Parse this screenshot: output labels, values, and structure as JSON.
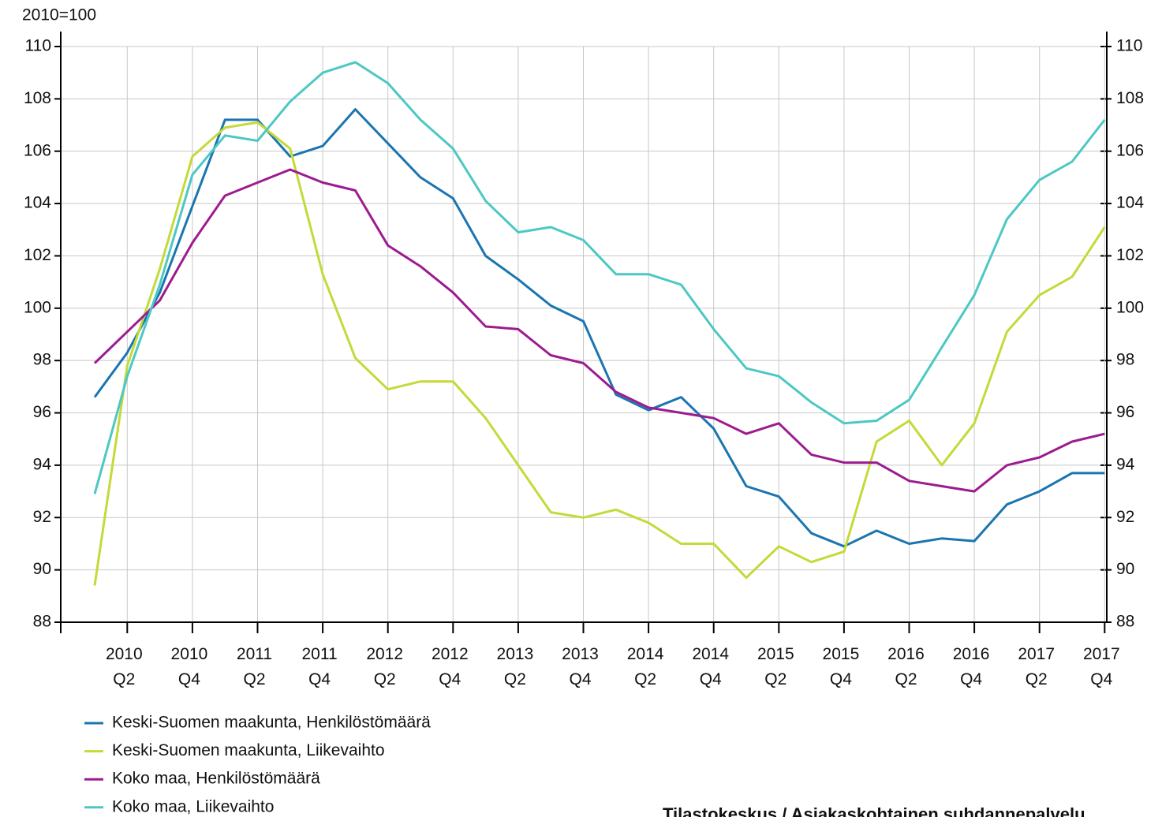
{
  "chart_data": {
    "type": "line",
    "y_unit_label": "2010=100",
    "source": "Tilastokeskus / Asiakaskohtainen suhdannepalvelu",
    "categories": [
      null,
      "2010\nQ2",
      null,
      "2010\nQ4",
      null,
      "2011\nQ2",
      null,
      "2011\nQ4",
      null,
      "2012\nQ2",
      null,
      "2012\nQ4",
      null,
      "2013\nQ2",
      null,
      "2013\nQ4",
      null,
      "2014\nQ2",
      null,
      "2014\nQ4",
      null,
      "2015\nQ2",
      null,
      "2015\nQ4",
      null,
      "2016\nQ2",
      null,
      "2016\nQ4",
      null,
      "2017\nQ2",
      null,
      "2017\nQ4"
    ],
    "series": [
      {
        "name": "Keski-Suomen maakunta, Henkilöstömäärä",
        "color": "#1a75b0",
        "values": [
          96.6,
          98.3,
          100.6,
          103.9,
          107.2,
          107.2,
          105.8,
          106.2,
          107.6,
          106.3,
          105.0,
          104.2,
          102.0,
          101.1,
          100.1,
          99.5,
          96.7,
          96.1,
          96.6,
          95.4,
          93.2,
          92.8,
          91.4,
          90.9,
          91.5,
          91.0,
          91.2,
          91.1,
          92.5,
          93.0,
          93.7,
          93.7
        ]
      },
      {
        "name": "Keski-Suomen maakunta, Liikevaihto",
        "color": "#c5d938",
        "values": [
          89.4,
          97.8,
          101.5,
          105.8,
          106.9,
          107.1,
          106.1,
          101.3,
          98.1,
          96.9,
          97.2,
          97.2,
          95.8,
          94.0,
          92.2,
          92.0,
          92.3,
          91.8,
          91.0,
          91.0,
          89.7,
          90.9,
          90.3,
          90.7,
          94.9,
          95.7,
          94.0,
          95.6,
          99.1,
          100.5,
          101.2,
          103.1
        ]
      },
      {
        "name": "Koko maa, Henkilöstömäärä",
        "color": "#9c1c8f",
        "values": [
          97.9,
          99.1,
          100.3,
          102.5,
          104.3,
          104.8,
          105.3,
          104.8,
          104.5,
          102.4,
          101.6,
          100.6,
          99.3,
          99.2,
          98.2,
          97.9,
          96.8,
          96.2,
          96.0,
          95.8,
          95.2,
          95.6,
          94.4,
          94.1,
          94.1,
          93.4,
          93.2,
          93.0,
          94.0,
          94.3,
          94.9,
          95.2
        ]
      },
      {
        "name": "Koko maa, Liikevaihto",
        "color": "#4cc8c4",
        "values": [
          92.9,
          97.4,
          100.9,
          105.1,
          106.6,
          106.4,
          107.9,
          109.0,
          109.4,
          108.6,
          107.2,
          106.1,
          104.1,
          102.9,
          103.1,
          102.6,
          101.3,
          101.3,
          100.9,
          99.2,
          97.7,
          97.4,
          96.4,
          95.6,
          95.7,
          96.5,
          98.5,
          100.5,
          103.4,
          104.9,
          105.6,
          107.2
        ]
      }
    ],
    "ylim": [
      88,
      110
    ],
    "yticks": [
      88,
      90,
      92,
      94,
      96,
      98,
      100,
      102,
      104,
      106,
      108,
      110
    ],
    "y2lim": [
      88,
      110
    ],
    "y2ticks": [
      88,
      90,
      92,
      94,
      96,
      98,
      100,
      102,
      104,
      106,
      108,
      110
    ],
    "grid": true,
    "legend": "bottom-left"
  }
}
